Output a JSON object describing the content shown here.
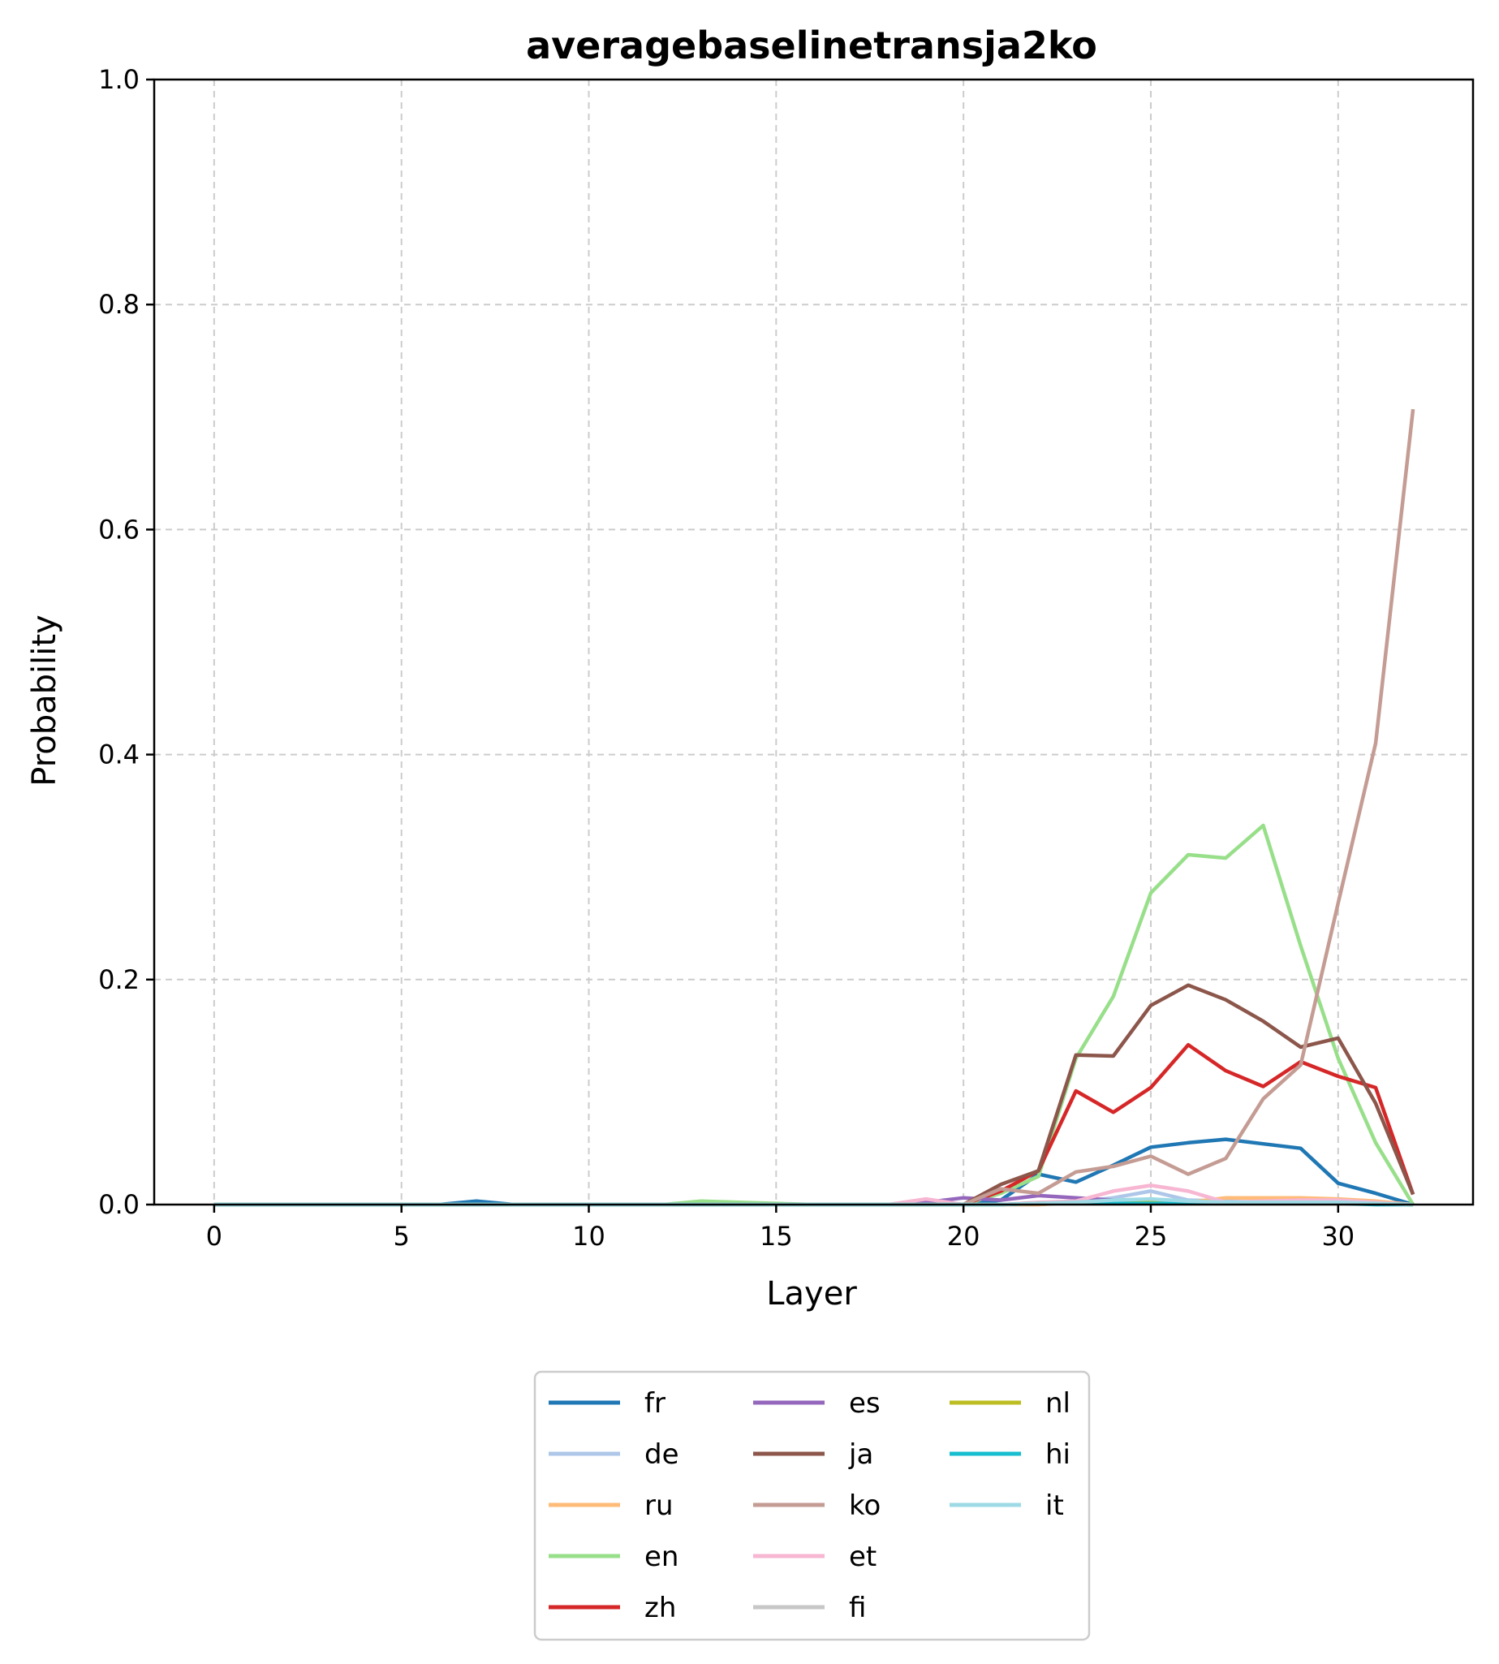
{
  "chart_data": {
    "type": "line",
    "title": "averagebaselinetransja2ko",
    "xlabel": "Layer",
    "ylabel": "Probability",
    "xlim": [
      -1.6,
      33.6
    ],
    "ylim": [
      0,
      1
    ],
    "xticks": [
      0,
      5,
      10,
      15,
      20,
      25,
      30
    ],
    "yticks": [
      0.0,
      0.2,
      0.4,
      0.6,
      0.8,
      1.0
    ],
    "xtick_labels": [
      "0",
      "5",
      "10",
      "15",
      "20",
      "25",
      "30"
    ],
    "ytick_labels": [
      "0.0",
      "0.2",
      "0.4",
      "0.6",
      "0.8",
      "1.0"
    ],
    "grid": true,
    "legend_position": "below",
    "x": [
      0,
      1,
      2,
      3,
      4,
      5,
      6,
      7,
      8,
      9,
      10,
      11,
      12,
      13,
      14,
      15,
      16,
      17,
      18,
      19,
      20,
      21,
      22,
      23,
      24,
      25,
      26,
      27,
      28,
      29,
      30,
      31,
      32
    ],
    "series": [
      {
        "name": "fr",
        "color": "#1f77b4",
        "values": [
          0,
          0,
          0,
          0,
          0,
          0,
          0,
          0.003,
          0,
          0,
          0,
          0,
          0,
          0,
          0,
          0,
          0,
          0,
          0,
          0,
          0,
          0.004,
          0.027,
          0.02,
          0.035,
          0.051,
          0.055,
          0.058,
          0.054,
          0.05,
          0.019,
          0.01,
          0
        ]
      },
      {
        "name": "de",
        "color": "#aec7e8",
        "values": [
          0,
          0,
          0,
          0,
          0,
          0,
          0,
          0,
          0,
          0,
          0,
          0,
          0,
          0,
          0,
          0,
          0,
          0,
          0,
          0,
          0,
          0,
          0,
          0.002,
          0.006,
          0.012,
          0.004,
          0.003,
          0.002,
          0.003,
          0.003,
          0.002,
          0
        ]
      },
      {
        "name": "ru",
        "color": "#ffbb78",
        "values": [
          0,
          0,
          0,
          0,
          0,
          0,
          0,
          0,
          0,
          0,
          0,
          0,
          0,
          0,
          0,
          0,
          0,
          0,
          0,
          0,
          0,
          0,
          0,
          0.002,
          0.003,
          0.003,
          0.002,
          0.006,
          0.006,
          0.006,
          0.005,
          0.003,
          0
        ]
      },
      {
        "name": "en",
        "color": "#98df8a",
        "values": [
          0,
          0,
          0,
          0,
          0,
          0,
          0,
          0,
          0,
          0,
          0,
          0,
          0,
          0.003,
          0.002,
          0.001,
          0,
          0,
          0,
          0,
          0,
          0.01,
          0.025,
          0.13,
          0.185,
          0.277,
          0.311,
          0.308,
          0.337,
          0.23,
          0.13,
          0.055,
          0
        ]
      },
      {
        "name": "zh",
        "color": "#d62728",
        "values": [
          0,
          0,
          0,
          0,
          0,
          0,
          0,
          0,
          0,
          0,
          0,
          0,
          0,
          0,
          0,
          0,
          0,
          0,
          0,
          0,
          0,
          0.012,
          0.03,
          0.101,
          0.082,
          0.104,
          0.142,
          0.119,
          0.105,
          0.127,
          0.114,
          0.104,
          0.009
        ]
      },
      {
        "name": "es",
        "color": "#9467bd",
        "values": [
          0,
          0,
          0,
          0,
          0,
          0,
          0,
          0,
          0,
          0,
          0,
          0,
          0,
          0,
          0,
          0,
          0,
          0,
          0,
          0.002,
          0.006,
          0.004,
          0.008,
          0.006,
          0.004,
          0.003,
          0.002,
          0.002,
          0.002,
          0.002,
          0.002,
          0.001,
          0
        ]
      },
      {
        "name": "ja",
        "color": "#8c564b",
        "values": [
          0,
          0,
          0,
          0,
          0,
          0,
          0,
          0,
          0,
          0,
          0,
          0,
          0,
          0,
          0,
          0,
          0,
          0,
          0,
          0,
          0,
          0.018,
          0.03,
          0.133,
          0.132,
          0.177,
          0.195,
          0.182,
          0.163,
          0.14,
          0.148,
          0.09,
          0.009
        ]
      },
      {
        "name": "ko",
        "color": "#c49c94",
        "values": [
          0,
          0,
          0,
          0,
          0,
          0,
          0,
          0,
          0,
          0,
          0,
          0,
          0,
          0,
          0,
          0,
          0,
          0,
          0,
          0,
          0,
          0.014,
          0.01,
          0.029,
          0.034,
          0.043,
          0.027,
          0.041,
          0.094,
          0.124,
          0.268,
          0.41,
          0.707
        ]
      },
      {
        "name": "et",
        "color": "#f7b6d2",
        "values": [
          0,
          0,
          0,
          0,
          0,
          0,
          0,
          0,
          0,
          0,
          0,
          0,
          0,
          0,
          0,
          0,
          0,
          0,
          0,
          0.005,
          0,
          0,
          0.002,
          0.003,
          0.012,
          0.017,
          0.012,
          0.002,
          0.003,
          0.004,
          0.004,
          0.002,
          0
        ]
      },
      {
        "name": "fi",
        "color": "#c7c7c7",
        "values": [
          0,
          0,
          0,
          0,
          0,
          0,
          0,
          0,
          0,
          0,
          0,
          0,
          0,
          0,
          0,
          0,
          0,
          0,
          0,
          0,
          0,
          0,
          0.001,
          0.002,
          0.003,
          0.003,
          0.002,
          0.002,
          0.002,
          0.002,
          0.002,
          0.001,
          0
        ]
      },
      {
        "name": "nl",
        "color": "#bcbd22",
        "values": [
          0,
          0,
          0,
          0,
          0,
          0,
          0,
          0,
          0,
          0,
          0,
          0,
          0,
          0,
          0,
          0,
          0,
          0,
          0,
          0,
          0,
          0,
          0.001,
          0.001,
          0.002,
          0.002,
          0.001,
          0.001,
          0.001,
          0.001,
          0.001,
          0.001,
          0
        ]
      },
      {
        "name": "hi",
        "color": "#17becf",
        "values": [
          0,
          0,
          0,
          0,
          0,
          0,
          0,
          0,
          0,
          0,
          0,
          0,
          0,
          0,
          0,
          0,
          0,
          0,
          0,
          0,
          0,
          0,
          0.001,
          0.001,
          0.001,
          0.001,
          0.001,
          0.001,
          0.001,
          0.001,
          0.001,
          0,
          0
        ]
      },
      {
        "name": "it",
        "color": "#9edae5",
        "values": [
          0,
          0,
          0,
          0,
          0,
          0,
          0,
          0,
          0,
          0,
          0,
          0,
          0,
          0,
          0,
          0,
          0,
          0,
          0,
          0,
          0,
          0,
          0.001,
          0.002,
          0.004,
          0.005,
          0.003,
          0.002,
          0.002,
          0.002,
          0.002,
          0.001,
          0
        ]
      }
    ]
  }
}
